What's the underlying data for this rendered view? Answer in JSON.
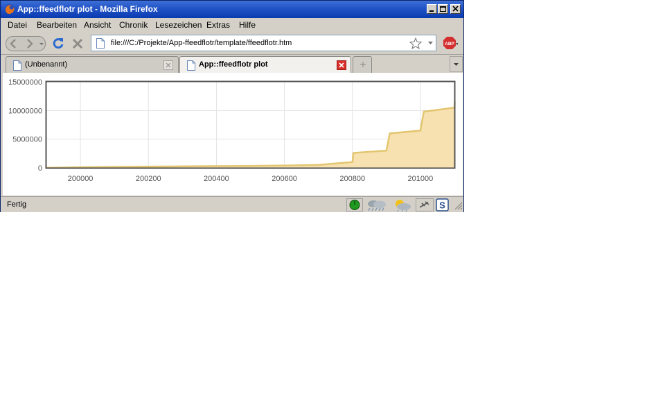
{
  "window": {
    "title": "App::ffeedflotr plot - Mozilla Firefox"
  },
  "menubar": {
    "items": [
      "Datei",
      "Bearbeiten",
      "Ansicht",
      "Chronik",
      "Lesezeichen",
      "Extras",
      "Hilfe"
    ]
  },
  "navbar": {
    "url": "file:///C:/Projekte/App-ffeedflotr/template/ffeedflotr.htm"
  },
  "tabs": [
    {
      "label": "(Unbenannt)",
      "active": false
    },
    {
      "label": "App::ffeedflotr plot",
      "active": true
    }
  ],
  "statusbar": {
    "text": "Fertig"
  },
  "colors": {
    "titlebar": "#0a3bb0",
    "area_fill": "#f7e1b0",
    "area_line": "#e2c56e",
    "abp": "#d42f2f"
  },
  "chart_data": {
    "type": "area",
    "x": [
      199900,
      200000,
      200100,
      200200,
      200300,
      200400,
      200500,
      200600,
      200700,
      200800,
      200803,
      200900,
      200910,
      201000,
      201010,
      201100,
      201101
    ],
    "y": [
      0,
      100000,
      150000,
      200000,
      250000,
      300000,
      330000,
      400000,
      500000,
      1000000,
      2600000,
      3000000,
      6000000,
      6500000,
      9800000,
      10500000,
      11500000
    ],
    "xticks": [
      "200000",
      "200200",
      "200400",
      "200600",
      "200800",
      "201000"
    ],
    "yticks": [
      "0",
      "5000000",
      "10000000",
      "15000000"
    ],
    "xlim": [
      199900,
      201100
    ],
    "ylim": [
      0,
      15000000
    ],
    "grid": true,
    "title": "",
    "xlabel": "",
    "ylabel": ""
  }
}
